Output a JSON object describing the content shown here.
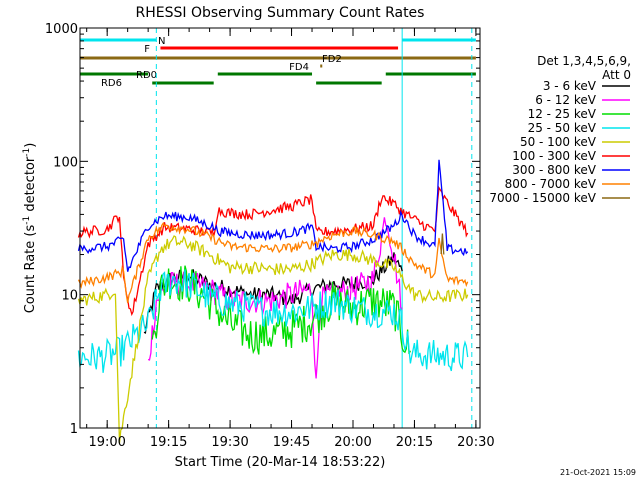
{
  "chart_data": {
    "type": "line",
    "title": "RHESSI Observing Summary Count Rates",
    "xlabel": "Start Time (20-Mar-14 18:53:22)",
    "ylabel_main": "Count Rate (s",
    "ylabel_sup1": "-1",
    "ylabel_mid": " detector",
    "ylabel_sup2": "-1",
    "ylabel_end": ")",
    "y_scale": "log",
    "ylim": [
      1,
      1000
    ],
    "xlim": [
      "18:53:22",
      "20:31:00"
    ],
    "x_ticks": [
      "19:00",
      "19:15",
      "19:30",
      "19:45",
      "20:00",
      "20:15",
      "20:30"
    ],
    "y_ticks": [
      "1",
      "10",
      "100",
      "1000"
    ],
    "timestamp": "21-Oct-2021 15:09",
    "legend": {
      "header1": "Det 1,3,4,5,6,9,",
      "header2": "Att 0",
      "position": "right",
      "entries": [
        {
          "label": "3 - 6 keV",
          "color": "#000000"
        },
        {
          "label": "6 - 12 keV",
          "color": "#ff00ff"
        },
        {
          "label": "12 - 25 keV",
          "color": "#00dd00"
        },
        {
          "label": "25 - 50 keV",
          "color": "#00e5ee"
        },
        {
          "label": "50 - 100 keV",
          "color": "#cccc00"
        },
        {
          "label": "100 - 300 keV",
          "color": "#ff0000"
        },
        {
          "label": "300 - 800 keV",
          "color": "#0000ff"
        },
        {
          "label": "800 - 7000 keV",
          "color": "#ff8000"
        },
        {
          "label": "7000 - 15000 keV",
          "color": "#8b6914"
        }
      ]
    },
    "flag_bars": [
      {
        "label": "N",
        "color": "#00e5ee",
        "segments": [
          [
            "18:53:22",
            "19:12:00"
          ],
          [
            "20:12:00",
            "20:30:00"
          ]
        ]
      },
      {
        "label": "F",
        "color": "#ff0000",
        "segments": [
          [
            "19:13:00",
            "20:11:00"
          ]
        ]
      },
      {
        "label": "FD2",
        "color": "#8b6914",
        "segments": [
          [
            "18:53:22",
            "20:30:00"
          ]
        ]
      },
      {
        "label": "FD4",
        "color": "#8b6914",
        "segments": [
          [
            "19:52:00",
            "19:52:30"
          ]
        ]
      },
      {
        "label": "RD0",
        "color": "#007700",
        "segments": [
          [
            "18:53:22",
            "19:10:00"
          ],
          [
            "19:27:00",
            "19:50:00"
          ],
          [
            "20:08:00",
            "20:30:00"
          ]
        ]
      },
      {
        "label": "RD6",
        "color": "#007700",
        "segments": [
          [
            "19:11:00",
            "19:26:00"
          ],
          [
            "19:51:00",
            "20:07:00"
          ]
        ]
      }
    ],
    "vlines": [
      {
        "time": "18:53:22",
        "style": "solid",
        "color": "#00e5ee"
      },
      {
        "time": "19:12:00",
        "style": "dashed",
        "color": "#00e5ee"
      },
      {
        "time": "20:12:00",
        "style": "solid",
        "color": "#00e5ee"
      },
      {
        "time": "20:29:00",
        "style": "dashed",
        "color": "#00e5ee"
      }
    ],
    "series": [
      {
        "name": "3 - 6 keV",
        "color": "#000000",
        "noise": 0.06,
        "x": [
          "19:09",
          "19:12",
          "19:15",
          "19:20",
          "19:25",
          "19:30",
          "19:35",
          "19:40",
          "19:45",
          "19:50",
          "19:55",
          "20:00",
          "20:05",
          "20:10",
          "20:12"
        ],
        "y": [
          5,
          11,
          13,
          14,
          12,
          11,
          10,
          10,
          9,
          11,
          12,
          12,
          13,
          19,
          15
        ]
      },
      {
        "name": "6 - 12 keV",
        "color": "#ff00ff",
        "noise": 0.1,
        "x": [
          "19:10",
          "19:12",
          "19:15",
          "19:20",
          "19:25",
          "19:30",
          "19:35",
          "19:40",
          "19:45",
          "19:50",
          "19:51",
          "19:52",
          "19:55",
          "20:00",
          "20:05",
          "20:08",
          "20:10",
          "20:12"
        ],
        "y": [
          3,
          9,
          12,
          12,
          11,
          9,
          9,
          9,
          10,
          11,
          2,
          9,
          10,
          11,
          13,
          40,
          20,
          8
        ]
      },
      {
        "name": "12 - 25 keV",
        "color": "#00dd00",
        "noise": 0.15,
        "x": [
          "19:11",
          "19:13",
          "19:15",
          "19:20",
          "19:25",
          "19:30",
          "19:35",
          "19:40",
          "19:45",
          "19:50",
          "19:55",
          "20:00",
          "20:05",
          "20:10",
          "20:12",
          "20:14"
        ],
        "y": [
          4,
          11,
          13,
          12,
          9,
          6,
          5,
          5,
          5.5,
          6.5,
          9,
          8,
          9,
          8,
          5,
          3.8
        ]
      },
      {
        "name": "25 - 50 keV",
        "color": "#00e5ee",
        "noise": 0.12,
        "x": [
          "18:53",
          "18:59",
          "19:00",
          "19:03",
          "19:10",
          "19:13",
          "19:16",
          "19:20",
          "19:25",
          "19:30",
          "19:35",
          "19:40",
          "19:45",
          "19:50",
          "19:55",
          "20:00",
          "20:05",
          "20:10",
          "20:12",
          "20:14",
          "20:20",
          "20:28"
        ],
        "y": [
          3.4,
          3.4,
          3.5,
          3.7,
          6,
          11,
          13,
          12,
          9.5,
          8.5,
          8,
          7.5,
          7.5,
          8,
          9,
          8,
          7.5,
          7.5,
          6,
          3.6,
          3.5,
          3.4
        ]
      },
      {
        "name": "50 - 100 keV",
        "color": "#cccc00",
        "noise": 0.05,
        "x": [
          "18:53",
          "19:00",
          "19:02",
          "19:03",
          "19:10",
          "19:13",
          "19:16",
          "19:20",
          "19:25",
          "19:30",
          "19:35",
          "19:40",
          "19:45",
          "19:50",
          "19:55",
          "20:00",
          "20:05",
          "20:10",
          "20:13",
          "20:15",
          "20:20",
          "20:28"
        ],
        "y": [
          9,
          10,
          11,
          0.8,
          13,
          22,
          25,
          24,
          20,
          16,
          16,
          15.5,
          15.5,
          17,
          20,
          20,
          18,
          16,
          12,
          10,
          9.5,
          10
        ]
      },
      {
        "name": "100 - 300 keV",
        "color": "#ff0000",
        "noise": 0.04,
        "x": [
          "18:53",
          "19:00",
          "19:03",
          "19:04",
          "19:06",
          "19:10",
          "19:14",
          "19:20",
          "19:26",
          "19:27",
          "19:30",
          "19:35",
          "19:40",
          "19:45",
          "19:50",
          "19:51",
          "19:55",
          "20:00",
          "20:05",
          "20:07",
          "20:08",
          "20:10",
          "20:12",
          "20:16",
          "20:20",
          "20:21",
          "20:28"
        ],
        "y": [
          29,
          31,
          40,
          13,
          7,
          24,
          32,
          31,
          29,
          43,
          41,
          40,
          43,
          46,
          52,
          29,
          30,
          31,
          33,
          55,
          52,
          48,
          42,
          35,
          30,
          60,
          29
        ]
      },
      {
        "name": "300 - 800 keV",
        "color": "#0000ff",
        "noise": 0.035,
        "x": [
          "18:53",
          "19:00",
          "19:04",
          "19:05",
          "19:10",
          "19:14",
          "19:20",
          "19:26",
          "19:27",
          "19:30",
          "19:35",
          "19:40",
          "19:45",
          "19:50",
          "19:51",
          "19:55",
          "20:00",
          "20:05",
          "20:10",
          "20:12",
          "20:15",
          "20:20",
          "20:21",
          "20:23",
          "20:28"
        ],
        "y": [
          22,
          23,
          26,
          15,
          33,
          39,
          38,
          32,
          30,
          29,
          28,
          28,
          29,
          32,
          23,
          22,
          23,
          26,
          33,
          40,
          28,
          23,
          100,
          22,
          21
        ]
      },
      {
        "name": "800 - 7000 keV",
        "color": "#ff8000",
        "noise": 0.035,
        "x": [
          "18:53",
          "19:00",
          "19:04",
          "19:05",
          "19:10",
          "19:14",
          "19:20",
          "19:25",
          "19:30",
          "19:35",
          "19:40",
          "19:45",
          "19:50",
          "19:55",
          "20:00",
          "20:05",
          "20:10",
          "20:12",
          "20:15",
          "20:20",
          "20:21",
          "20:23",
          "20:28"
        ],
        "y": [
          12,
          13.5,
          15,
          9,
          27,
          33,
          31,
          27,
          23,
          22.5,
          22,
          22.5,
          24,
          28,
          30,
          28,
          25,
          22,
          17,
          14,
          25,
          13,
          12.5
        ]
      },
      {
        "name": "7000 - 15000 keV",
        "color": "#8b6914",
        "noise": 0.02,
        "x": [
          "20:21:30",
          "20:21:50",
          "20:22:10"
        ],
        "y": [
          20,
          30,
          20
        ]
      }
    ]
  }
}
